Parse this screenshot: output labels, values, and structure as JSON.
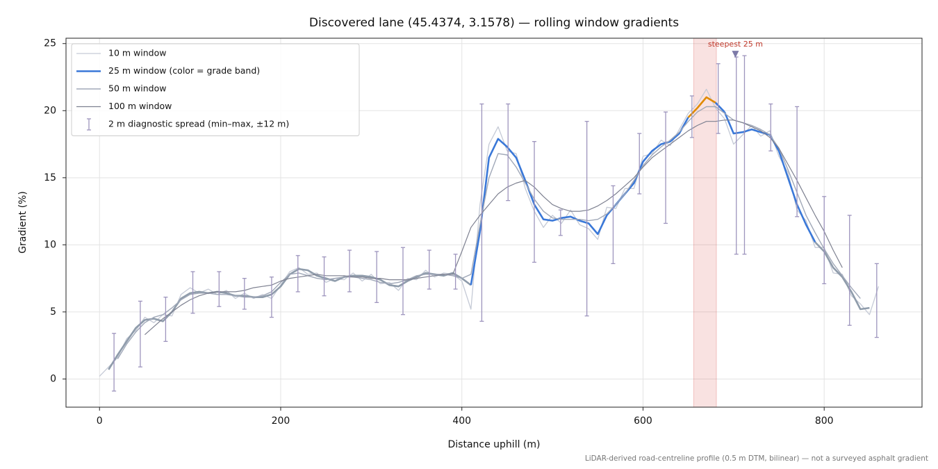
{
  "chart_data": {
    "type": "line",
    "title": "Discovered lane (45.4374, 3.1578) — rolling window gradients",
    "x_label": "Distance uphill (m)",
    "y_label": "Gradient (%)",
    "footnote": "LiDAR-derived road-centreline profile (0.5 m DTM, bilinear) — not a surveyed asphalt gradient",
    "xlim": [
      -37,
      908
    ],
    "ylim": [
      -2.1,
      25.4
    ],
    "xticks": [
      0,
      200,
      400,
      600,
      800
    ],
    "yticks": [
      0,
      5,
      10,
      15,
      20,
      25
    ],
    "grid": true,
    "legend": "upper-left",
    "x": [
      0,
      10,
      20,
      30,
      40,
      50,
      60,
      70,
      80,
      90,
      100,
      110,
      120,
      130,
      140,
      150,
      160,
      170,
      180,
      190,
      200,
      210,
      220,
      230,
      240,
      250,
      260,
      270,
      280,
      290,
      300,
      310,
      320,
      330,
      340,
      350,
      360,
      370,
      380,
      390,
      400,
      410,
      420,
      430,
      440,
      450,
      460,
      470,
      480,
      490,
      500,
      510,
      520,
      530,
      540,
      550,
      560,
      570,
      580,
      590,
      600,
      610,
      620,
      630,
      640,
      650,
      660,
      670,
      680,
      690,
      700,
      710,
      720,
      730,
      740,
      750,
      760,
      770,
      780,
      790,
      800,
      810,
      820,
      830,
      840,
      850,
      860
    ],
    "series": [
      {
        "name": "10 m window",
        "color": "#c5cad6",
        "width": 1.3,
        "values": [
          0.2,
          0.9,
          1.6,
          3.0,
          3.6,
          4.6,
          4.2,
          4.8,
          4.7,
          6.3,
          6.8,
          6.4,
          6.7,
          6.3,
          6.6,
          6.0,
          6.4,
          6.0,
          6.3,
          6.0,
          7.0,
          8.0,
          8.3,
          7.8,
          7.9,
          7.2,
          7.5,
          7.4,
          7.9,
          7.3,
          7.8,
          7.1,
          7.2,
          6.6,
          7.5,
          7.4,
          8.1,
          7.6,
          7.9,
          7.8,
          7.3,
          5.2,
          13.0,
          17.5,
          18.8,
          17.0,
          16.8,
          14.2,
          12.5,
          11.3,
          12.2,
          11.6,
          12.6,
          11.5,
          11.2,
          10.4,
          12.8,
          12.7,
          14.2,
          14.2,
          16.6,
          16.8,
          17.8,
          17.4,
          18.6,
          19.8,
          20.5,
          21.6,
          20.2,
          19.4,
          17.5,
          18.2,
          18.9,
          18.1,
          18.5,
          16.6,
          15.4,
          12.6,
          11.8,
          9.8,
          9.8,
          7.9,
          7.8,
          6.2,
          5.6,
          4.8,
          6.9
        ]
      },
      {
        "name": "25 m window (color = grade band)",
        "color": "#3a78d8",
        "width": 2.6,
        "grade_bands": [
          {
            "below": 10,
            "color": "#8f9cab"
          },
          {
            "below": 20,
            "color": "#3a78d8"
          },
          {
            "color": "#e08a00"
          }
        ],
        "values": [
          null,
          0.7,
          1.8,
          2.8,
          3.8,
          4.4,
          4.5,
          4.3,
          5.0,
          6.0,
          6.4,
          6.5,
          6.4,
          6.5,
          6.4,
          6.2,
          6.2,
          6.1,
          6.1,
          6.3,
          6.9,
          7.8,
          8.2,
          8.1,
          7.7,
          7.5,
          7.3,
          7.6,
          7.7,
          7.7,
          7.6,
          7.4,
          7.0,
          6.9,
          7.3,
          7.6,
          7.9,
          7.8,
          7.7,
          7.9,
          7.5,
          7.0,
          11.0,
          16.5,
          17.9,
          17.3,
          16.5,
          14.8,
          13.0,
          11.9,
          11.8,
          12.0,
          12.1,
          11.8,
          11.6,
          10.8,
          12.2,
          13.0,
          13.8,
          14.6,
          16.2,
          17.0,
          17.5,
          17.7,
          18.3,
          19.5,
          20.2,
          21.0,
          20.6,
          19.9,
          18.3,
          18.4,
          18.6,
          18.4,
          18.2,
          17.0,
          15.0,
          13.0,
          11.5,
          10.2,
          9.5,
          8.3,
          7.6,
          6.5,
          5.2,
          5.3,
          null
        ]
      },
      {
        "name": "50 m window",
        "color": "#a0a8b8",
        "width": 1.4,
        "values": [
          null,
          null,
          1.5,
          2.6,
          3.5,
          4.2,
          4.6,
          4.8,
          5.3,
          5.9,
          6.3,
          6.4,
          6.4,
          6.3,
          6.3,
          6.2,
          6.1,
          6.1,
          6.2,
          6.5,
          7.2,
          7.8,
          7.9,
          7.7,
          7.5,
          7.4,
          7.5,
          7.6,
          7.6,
          7.5,
          7.4,
          7.2,
          7.1,
          7.2,
          7.4,
          7.7,
          7.8,
          7.8,
          7.8,
          7.7,
          7.5,
          7.8,
          11.5,
          15.0,
          16.8,
          16.7,
          15.8,
          14.6,
          13.4,
          12.5,
          12.0,
          11.9,
          11.9,
          11.9,
          11.8,
          11.9,
          12.3,
          13.0,
          13.8,
          14.8,
          15.9,
          16.7,
          17.3,
          17.8,
          18.4,
          19.2,
          19.9,
          20.3,
          20.3,
          19.8,
          19.3,
          19.1,
          18.9,
          18.6,
          18.2,
          17.2,
          15.6,
          13.9,
          12.2,
          10.9,
          9.7,
          8.6,
          7.7,
          6.8,
          6.0,
          null,
          null
        ]
      },
      {
        "name": "100 m window",
        "color": "#7d8090",
        "width": 1.2,
        "values": [
          null,
          null,
          null,
          null,
          null,
          3.3,
          3.9,
          4.5,
          5.0,
          5.5,
          5.9,
          6.2,
          6.4,
          6.5,
          6.5,
          6.5,
          6.6,
          6.8,
          6.9,
          7.0,
          7.3,
          7.5,
          7.6,
          7.7,
          7.8,
          7.7,
          7.7,
          7.7,
          7.6,
          7.6,
          7.5,
          7.5,
          7.4,
          7.4,
          7.4,
          7.5,
          7.6,
          7.7,
          7.8,
          7.8,
          9.5,
          11.3,
          12.2,
          13.0,
          13.8,
          14.3,
          14.6,
          14.8,
          14.3,
          13.6,
          13.0,
          12.7,
          12.5,
          12.5,
          12.6,
          12.9,
          13.3,
          13.8,
          14.4,
          15.0,
          15.8,
          16.5,
          17.0,
          17.5,
          18.0,
          18.5,
          18.9,
          19.2,
          19.2,
          19.3,
          19.3,
          19.1,
          18.8,
          18.5,
          18.0,
          17.2,
          16.0,
          14.8,
          13.5,
          12.2,
          11.0,
          9.6,
          8.3,
          null,
          null,
          null,
          null
        ]
      }
    ],
    "spread": {
      "name": "2 m diagnostic spread (min–max, ±12 m)",
      "color": "#9d94bd",
      "x": [
        16,
        45,
        73,
        103,
        132,
        160,
        190,
        219,
        248,
        276,
        306,
        335,
        364,
        393,
        422,
        451,
        480,
        509,
        538,
        567,
        596,
        625,
        654,
        683,
        703,
        712,
        741,
        770,
        800,
        828,
        858
      ],
      "low": [
        -0.9,
        0.9,
        2.8,
        4.9,
        5.4,
        5.2,
        4.6,
        6.5,
        6.2,
        6.5,
        5.7,
        4.8,
        6.7,
        6.7,
        4.3,
        13.3,
        8.7,
        10.7,
        4.7,
        8.6,
        13.8,
        11.6,
        18.0,
        18.3,
        9.3,
        9.3,
        17.0,
        12.1,
        7.1,
        4.0,
        3.1
      ],
      "high": [
        3.4,
        5.8,
        6.1,
        8.0,
        8.0,
        7.5,
        7.6,
        9.2,
        9.1,
        9.6,
        9.5,
        9.8,
        9.6,
        9.3,
        20.5,
        20.5,
        17.7,
        12.6,
        19.2,
        14.4,
        18.3,
        19.9,
        21.1,
        23.5,
        24.0,
        24.1,
        20.5,
        20.3,
        13.6,
        12.2,
        8.6
      ]
    },
    "highlight": {
      "x": [
        656,
        681
      ],
      "color": "#d9534f"
    },
    "annotation": {
      "text": "steepest 25 m",
      "x": 702,
      "y": 24.2,
      "color": "#c0392b",
      "marker_color": "#7d7aa8"
    }
  }
}
